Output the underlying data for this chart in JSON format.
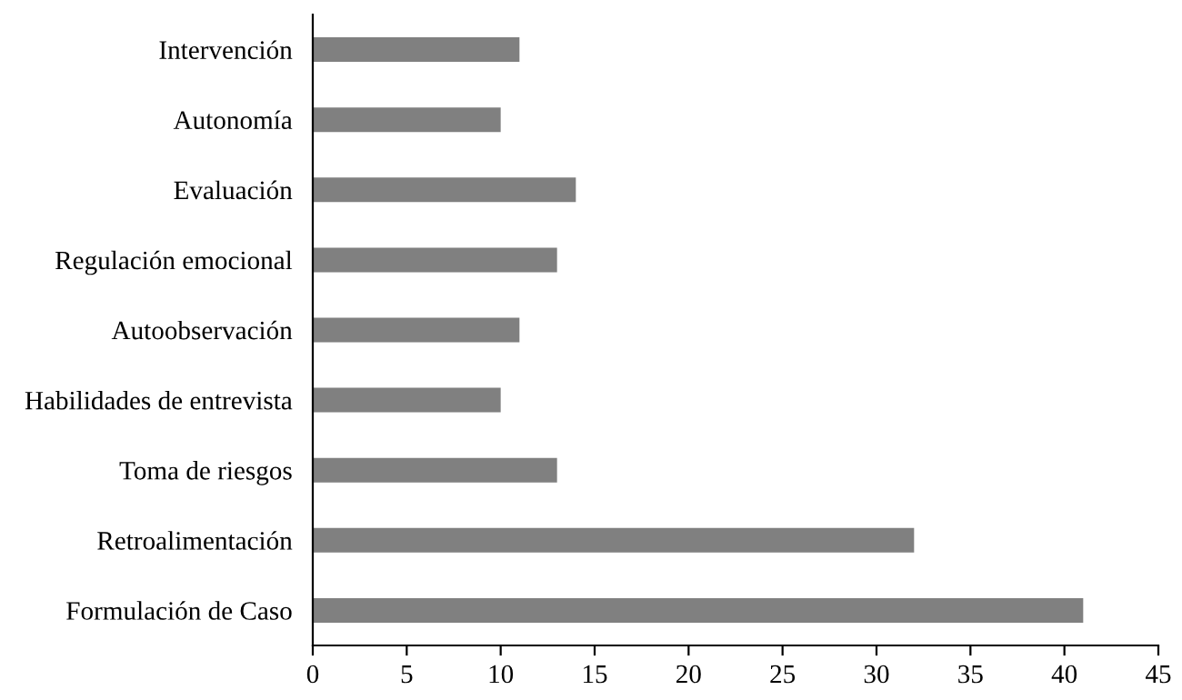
{
  "chart_data": {
    "type": "bar",
    "orientation": "horizontal",
    "categories": [
      "Intervención",
      "Autonomía",
      "Evaluación",
      "Regulación emocional",
      "Autoobservación",
      "Habilidades de entrevista",
      "Toma de riesgos",
      "Retroalimentación",
      "Formulación de Caso"
    ],
    "values": [
      11,
      10,
      14,
      13,
      11,
      10,
      13,
      32,
      41
    ],
    "color": "#808080",
    "xlim": [
      0,
      45
    ],
    "xticks": [
      0,
      5,
      10,
      15,
      20,
      25,
      30,
      35,
      40,
      45
    ],
    "grid": false,
    "legend": false
  }
}
